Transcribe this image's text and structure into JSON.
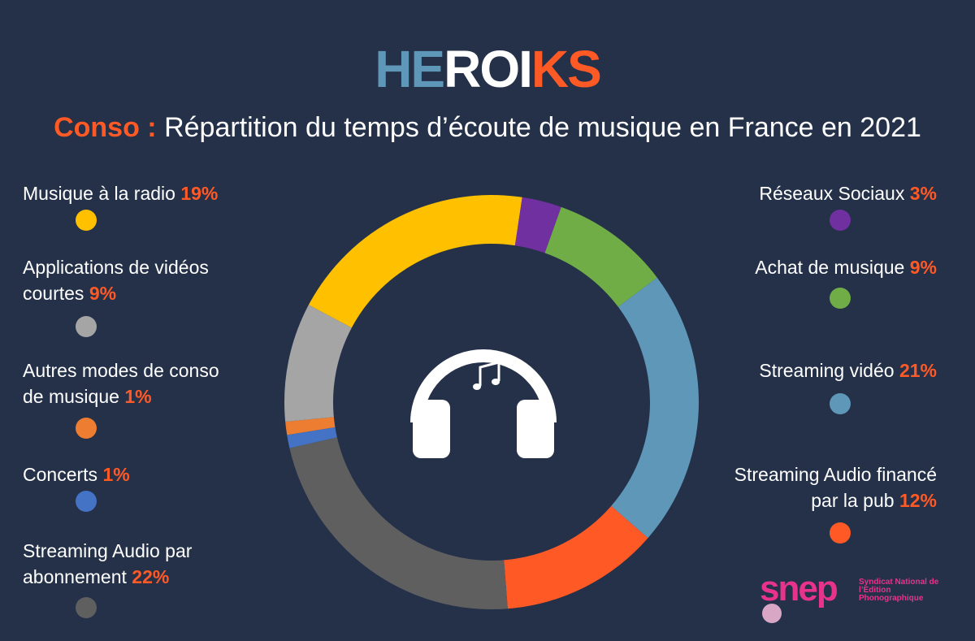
{
  "chart_data": {
    "type": "pie",
    "donut": true,
    "brand": "HEROIKS",
    "title_prefix": "Conso :",
    "title": "Répartition du temps d’écoute de musique en France en 2021",
    "categories": [
      "Musique à la radio",
      "Réseaux Sociaux",
      "Achat de musique",
      "Streaming vidéo",
      "Streaming Audio financé par la pub",
      "Streaming Audio par abonnement",
      "Concerts",
      "Autres modes de conso de musique",
      "Applications de vidéos courtes"
    ],
    "values": [
      19,
      3,
      9,
      21,
      12,
      22,
      1,
      1,
      9
    ],
    "value_labels": [
      "19%",
      "3%",
      "9%",
      "21%",
      "12%",
      "22%",
      "1%",
      "1%",
      "9%"
    ],
    "colors": [
      "#ffc000",
      "#7030a0",
      "#70ad47",
      "#5f97b8",
      "#ff5a26",
      "#5f5f5f",
      "#4472c4",
      "#ed7d31",
      "#a5a5a5"
    ],
    "source": {
      "logo": "snep",
      "name": "Syndicat National de l’Edition Phonographique"
    }
  }
}
